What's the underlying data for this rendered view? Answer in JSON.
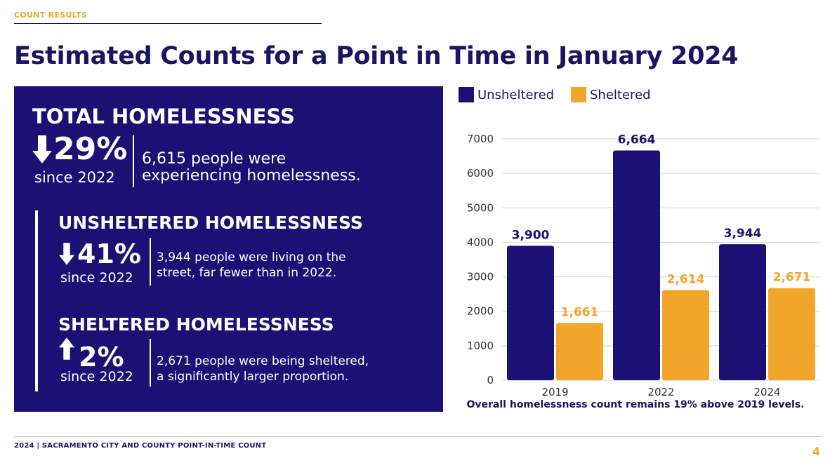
{
  "header": {
    "section_label": "COUNT RESULTS",
    "title": "Estimated Counts for a Point in Time in January 2024"
  },
  "summary": {
    "total": {
      "heading": "TOTAL HOMELESSNESS",
      "direction_icon": "arrow-down-icon",
      "change": "29%",
      "since": "since 2022",
      "description_line1": "6,615 people were",
      "description_line2": "experiencing homelessness."
    },
    "unsheltered": {
      "heading": "UNSHELTERED HOMELESSNESS",
      "direction_icon": "arrow-down-icon",
      "change": "41%",
      "since": "since 2022",
      "description_line1": "3,944 people were living on the",
      "description_line2": "street, far fewer than in 2022."
    },
    "sheltered": {
      "heading": "SHELTERED HOMELESSNESS",
      "direction_icon": "arrow-up-icon",
      "change": "2%",
      "since": "since 2022",
      "description_line1": "2,671 people were being sheltered,",
      "description_line2": "a significantly larger proportion."
    }
  },
  "chart_data": {
    "type": "bar",
    "categories": [
      "2019",
      "2022",
      "2024"
    ],
    "series": [
      {
        "name": "Unsheltered",
        "color": "#1b1175",
        "values": [
          3900,
          6664,
          3944
        ],
        "labels": [
          "3,900",
          "6,664",
          "3,944"
        ]
      },
      {
        "name": "Sheltered",
        "color": "#f2a52b",
        "values": [
          1661,
          2614,
          2671
        ],
        "labels": [
          "1,661",
          "2,614",
          "2,671"
        ]
      }
    ],
    "ylim": [
      0,
      7000
    ],
    "yticks": [
      0,
      1000,
      2000,
      3000,
      4000,
      5000,
      6000,
      7000
    ],
    "grid": true,
    "legend_position": "top-left",
    "caption": "Overall homelessness count remains 19% above 2019 levels."
  },
  "footer": {
    "text": "2024 | SACRAMENTO CITY AND COUNTY POINT-IN-TIME COUNT",
    "page_number": "4"
  },
  "colors": {
    "navy": "#1b1175",
    "title_navy": "#1b1464",
    "gold": "#f2a52b"
  }
}
